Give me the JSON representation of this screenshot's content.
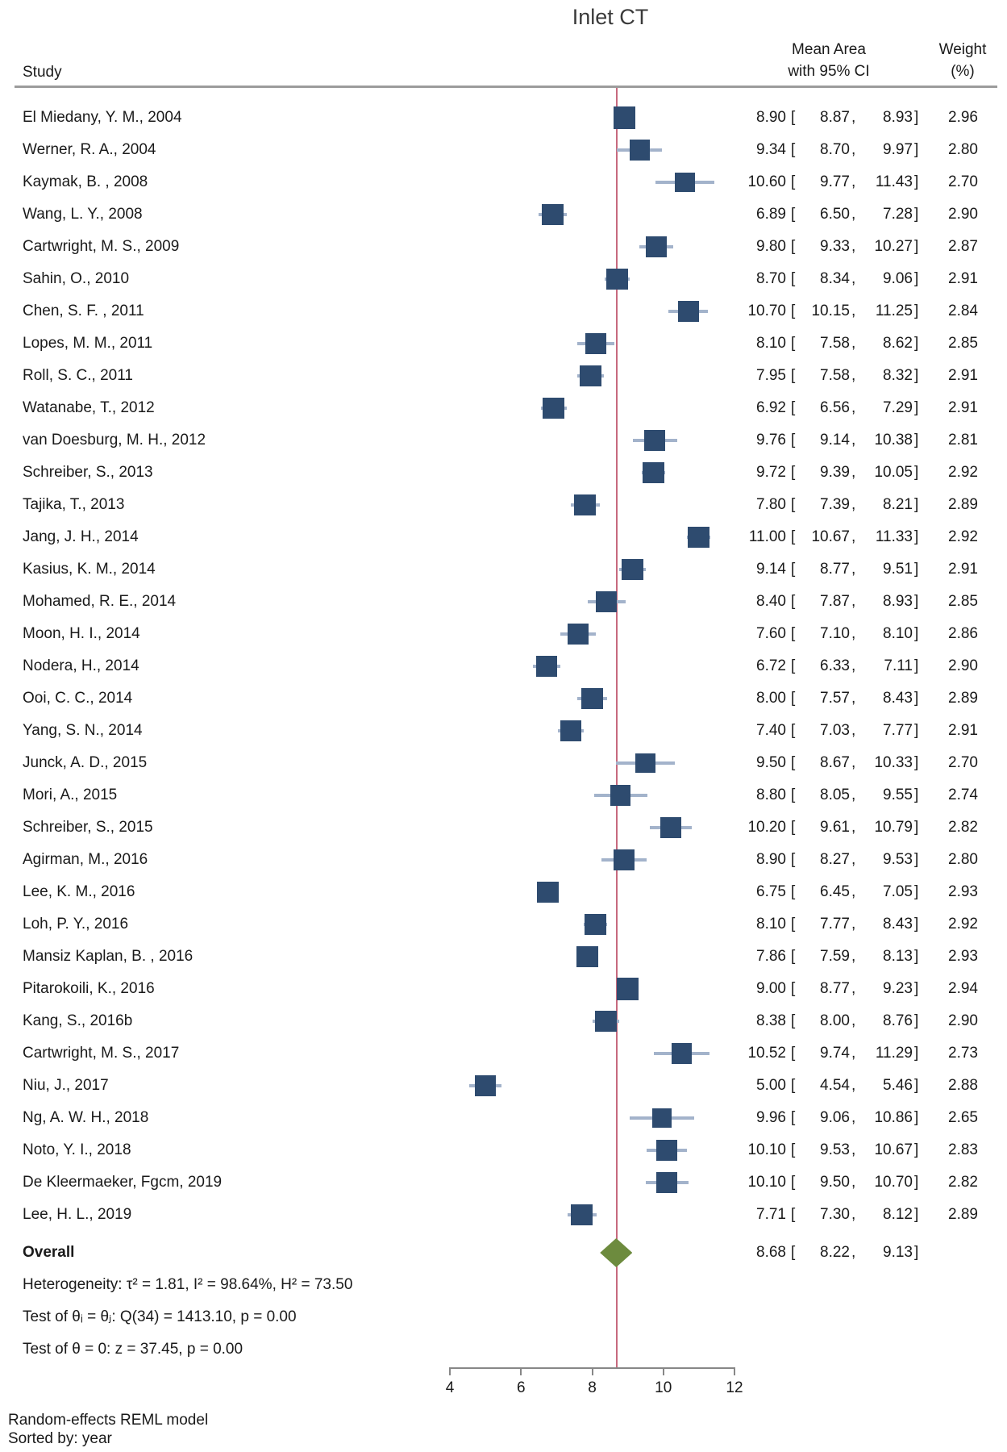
{
  "title": "Inlet CT",
  "header": {
    "study_col": "Study",
    "effect_col_line1": "Mean Area",
    "effect_col_line2": "with 95% CI",
    "weight_col_line1": "Weight",
    "weight_col_line2": "(%)"
  },
  "chart_data": {
    "type": "forest",
    "title": "Inlet CT",
    "x_ticks": [
      4,
      6,
      8,
      10,
      12
    ],
    "x_range": [
      4,
      12
    ],
    "reference_line_value": 8.68,
    "marker_color": "#2e4b6f",
    "whisker_color": "#a3b3cb",
    "reference_line_color": "#c76a7e",
    "diamond_color": "#6d8b3e",
    "studies": [
      {
        "label": "El Miedany, Y. M., 2004",
        "mean": 8.9,
        "lo": 8.87,
        "hi": 8.93,
        "weight": 2.96
      },
      {
        "label": "Werner, R. A., 2004",
        "mean": 9.34,
        "lo": 8.7,
        "hi": 9.97,
        "weight": 2.8
      },
      {
        "label": "Kaymak, B. , 2008",
        "mean": 10.6,
        "lo": 9.77,
        "hi": 11.43,
        "weight": 2.7
      },
      {
        "label": "Wang, L. Y., 2008",
        "mean": 6.89,
        "lo": 6.5,
        "hi": 7.28,
        "weight": 2.9
      },
      {
        "label": "Cartwright, M. S., 2009",
        "mean": 9.8,
        "lo": 9.33,
        "hi": 10.27,
        "weight": 2.87
      },
      {
        "label": "Sahin, O., 2010",
        "mean": 8.7,
        "lo": 8.34,
        "hi": 9.06,
        "weight": 2.91
      },
      {
        "label": "Chen, S. F. , 2011",
        "mean": 10.7,
        "lo": 10.15,
        "hi": 11.25,
        "weight": 2.84
      },
      {
        "label": "Lopes, M. M., 2011",
        "mean": 8.1,
        "lo": 7.58,
        "hi": 8.62,
        "weight": 2.85
      },
      {
        "label": "Roll, S. C., 2011",
        "mean": 7.95,
        "lo": 7.58,
        "hi": 8.32,
        "weight": 2.91
      },
      {
        "label": "Watanabe, T., 2012",
        "mean": 6.92,
        "lo": 6.56,
        "hi": 7.29,
        "weight": 2.91
      },
      {
        "label": "van Doesburg, M. H., 2012",
        "mean": 9.76,
        "lo": 9.14,
        "hi": 10.38,
        "weight": 2.81
      },
      {
        "label": "Schreiber, S., 2013",
        "mean": 9.72,
        "lo": 9.39,
        "hi": 10.05,
        "weight": 2.92
      },
      {
        "label": "Tajika, T., 2013",
        "mean": 7.8,
        "lo": 7.39,
        "hi": 8.21,
        "weight": 2.89
      },
      {
        "label": "Jang, J. H., 2014",
        "mean": 11.0,
        "lo": 10.67,
        "hi": 11.33,
        "weight": 2.92
      },
      {
        "label": "Kasius, K. M., 2014",
        "mean": 9.14,
        "lo": 8.77,
        "hi": 9.51,
        "weight": 2.91
      },
      {
        "label": "Mohamed, R. E., 2014",
        "mean": 8.4,
        "lo": 7.87,
        "hi": 8.93,
        "weight": 2.85
      },
      {
        "label": "Moon, H. I., 2014",
        "mean": 7.6,
        "lo": 7.1,
        "hi": 8.1,
        "weight": 2.86
      },
      {
        "label": "Nodera, H., 2014",
        "mean": 6.72,
        "lo": 6.33,
        "hi": 7.11,
        "weight": 2.9
      },
      {
        "label": "Ooi, C. C., 2014",
        "mean": 8.0,
        "lo": 7.57,
        "hi": 8.43,
        "weight": 2.89
      },
      {
        "label": "Yang, S. N., 2014",
        "mean": 7.4,
        "lo": 7.03,
        "hi": 7.77,
        "weight": 2.91
      },
      {
        "label": "Junck, A. D., 2015",
        "mean": 9.5,
        "lo": 8.67,
        "hi": 10.33,
        "weight": 2.7
      },
      {
        "label": "Mori, A., 2015",
        "mean": 8.8,
        "lo": 8.05,
        "hi": 9.55,
        "weight": 2.74
      },
      {
        "label": "Schreiber, S., 2015",
        "mean": 10.2,
        "lo": 9.61,
        "hi": 10.79,
        "weight": 2.82
      },
      {
        "label": "Agirman, M., 2016",
        "mean": 8.9,
        "lo": 8.27,
        "hi": 9.53,
        "weight": 2.8
      },
      {
        "label": "Lee, K. M., 2016",
        "mean": 6.75,
        "lo": 6.45,
        "hi": 7.05,
        "weight": 2.93
      },
      {
        "label": "Loh, P. Y., 2016",
        "mean": 8.1,
        "lo": 7.77,
        "hi": 8.43,
        "weight": 2.92
      },
      {
        "label": "Mansiz Kaplan, B. , 2016",
        "mean": 7.86,
        "lo": 7.59,
        "hi": 8.13,
        "weight": 2.93
      },
      {
        "label": "Pitarokoili, K., 2016",
        "mean": 9.0,
        "lo": 8.77,
        "hi": 9.23,
        "weight": 2.94
      },
      {
        "label": "Kang, S., 2016b",
        "mean": 8.38,
        "lo": 8.0,
        "hi": 8.76,
        "weight": 2.9
      },
      {
        "label": "Cartwright, M. S., 2017",
        "mean": 10.52,
        "lo": 9.74,
        "hi": 11.29,
        "weight": 2.73
      },
      {
        "label": "Niu, J., 2017",
        "mean": 5.0,
        "lo": 4.54,
        "hi": 5.46,
        "weight": 2.88
      },
      {
        "label": "Ng, A. W. H., 2018",
        "mean": 9.96,
        "lo": 9.06,
        "hi": 10.86,
        "weight": 2.65
      },
      {
        "label": "Noto, Y. I., 2018",
        "mean": 10.1,
        "lo": 9.53,
        "hi": 10.67,
        "weight": 2.83
      },
      {
        "label": "De Kleermaeker, Fgcm, 2019",
        "mean": 10.1,
        "lo": 9.5,
        "hi": 10.7,
        "weight": 2.82
      },
      {
        "label": "Lee, H. L., 2019",
        "mean": 7.71,
        "lo": 7.3,
        "hi": 8.12,
        "weight": 2.89
      }
    ],
    "overall": {
      "label": "Overall",
      "mean": 8.68,
      "lo": 8.22,
      "hi": 9.13
    },
    "notes": [
      "Heterogeneity: τ² = 1.81, I² = 98.64%, H² = 73.50",
      "Test of θᵢ = θⱼ: Q(34) = 1413.10, p = 0.00",
      "Test of θ = 0: z = 37.45, p = 0.00"
    ]
  },
  "footer": {
    "line1": "Random-effects REML model",
    "line2": "Sorted by: year"
  }
}
